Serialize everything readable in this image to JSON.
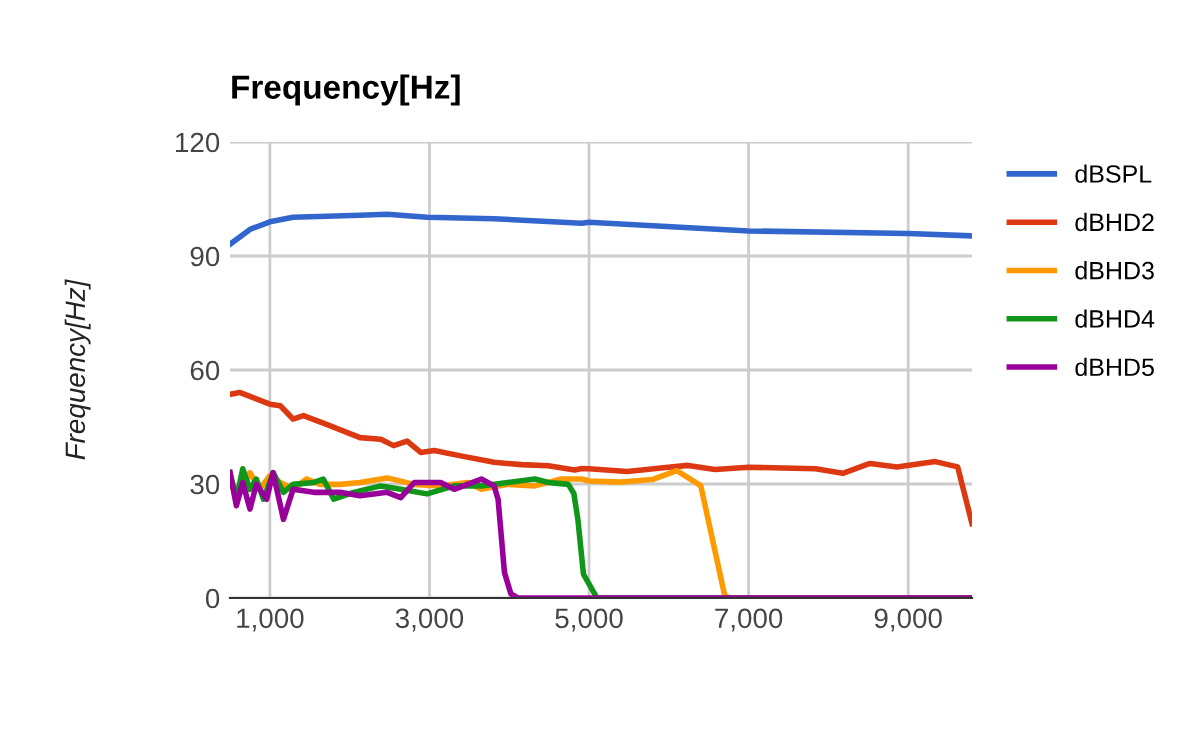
{
  "chart_data": {
    "type": "line",
    "title": "Frequency[Hz]",
    "ylabel": "Frequency[Hz]",
    "xlim": [
      500,
      9800
    ],
    "xticks": [
      {
        "value": 1000,
        "label": "1,000"
      },
      {
        "value": 3000,
        "label": "3,000"
      },
      {
        "value": 5000,
        "label": "5,000"
      },
      {
        "value": 7000,
        "label": "7,000"
      },
      {
        "value": 9000,
        "label": "9,000"
      }
    ],
    "ylim": [
      0,
      120
    ],
    "yticks": [
      0,
      30,
      60,
      90,
      120
    ],
    "grid": true,
    "legend": "right",
    "series": [
      {
        "name": "dBSPL",
        "color": "#3366cc",
        "x": [
          500,
          750,
          1000,
          1290,
          2130,
          2470,
          2970,
          3810,
          4910,
          5000,
          7000,
          9000,
          9800
        ],
        "values": [
          93.1,
          97,
          99,
          100.2,
          100.7,
          101,
          100.2,
          99.8,
          98.6,
          98.9,
          96.6,
          95.9,
          95.3
        ]
      },
      {
        "name": "dBHD2",
        "color": "#dc3912",
        "x": [
          500,
          620,
          1000,
          1130,
          1290,
          1420,
          1710,
          2130,
          2390,
          2550,
          2720,
          2890,
          3060,
          3390,
          3810,
          4150,
          4490,
          4820,
          4910,
          5000,
          5480,
          5900,
          6240,
          6580,
          7000,
          7840,
          8180,
          8520,
          8860,
          9340,
          9620,
          9800
        ],
        "values": [
          53.6,
          54.1,
          51,
          50.6,
          47.1,
          48,
          45.7,
          42.2,
          41.8,
          40.1,
          41.3,
          38.3,
          38.8,
          37.4,
          35.7,
          35.1,
          34.8,
          33.7,
          34.1,
          34,
          33.3,
          34.2,
          34.9,
          33.8,
          34.4,
          34,
          32.8,
          35.4,
          34.5,
          35.9,
          34.5,
          19.6
        ]
      },
      {
        "name": "dBHD3",
        "color": "#ff9900",
        "x": [
          500,
          620,
          750,
          870,
          1000,
          1130,
          1290,
          1460,
          1630,
          1880,
          2130,
          2470,
          2810,
          3140,
          3480,
          3650,
          3980,
          4320,
          4650,
          4910,
          5000,
          5400,
          5800,
          6100,
          6400,
          6700,
          6760,
          9800
        ],
        "values": [
          29.5,
          27.8,
          33,
          28.6,
          32.2,
          30.4,
          28.6,
          31.3,
          29.9,
          29.9,
          30.4,
          31.6,
          29.9,
          29.5,
          30.4,
          28.6,
          29.9,
          29.5,
          31.3,
          31.3,
          30.8,
          30.5,
          31.2,
          33.5,
          29.6,
          0.7,
          0,
          0
        ]
      },
      {
        "name": "dBHD4",
        "color": "#109618",
        "x": [
          500,
          580,
          660,
          750,
          830,
          920,
          1040,
          1170,
          1290,
          1550,
          1670,
          1800,
          2050,
          2390,
          2640,
          2970,
          3310,
          3650,
          3980,
          4320,
          4490,
          4740,
          4810,
          4860,
          4930,
          5100,
          9800
        ],
        "values": [
          33,
          26,
          34,
          28.6,
          31.3,
          26,
          33,
          27.8,
          29.9,
          30.4,
          31.3,
          26,
          27.8,
          29.5,
          28.6,
          27.4,
          29.5,
          29.5,
          30.4,
          31.3,
          30.4,
          29.9,
          27.5,
          20.7,
          6.3,
          0,
          0
        ]
      },
      {
        "name": "dBHD5",
        "color": "#990099",
        "x": [
          500,
          580,
          660,
          750,
          830,
          960,
          1040,
          1170,
          1290,
          1550,
          1880,
          2130,
          2470,
          2640,
          2810,
          3140,
          3310,
          3650,
          3810,
          3860,
          3940,
          4020,
          4110,
          9800
        ],
        "values": [
          33,
          24.3,
          30.4,
          23.4,
          29.9,
          26,
          33,
          20.7,
          28.6,
          27.8,
          27.8,
          26.9,
          27.8,
          26.4,
          30.4,
          30.4,
          28.6,
          31.3,
          29.5,
          26,
          6.7,
          1.1,
          0,
          0
        ]
      }
    ]
  }
}
